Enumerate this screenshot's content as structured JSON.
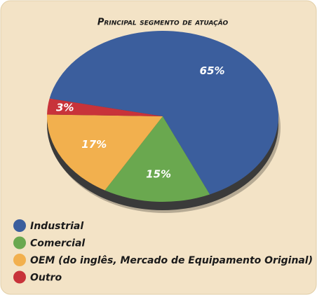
{
  "chart_data": {
    "type": "pie",
    "title": "Principal segmento de atuação",
    "categories": [
      "Industrial",
      "Comercial",
      "OEM (do inglês, Mercado de Equipamento Original)",
      "Outro"
    ],
    "values": [
      65,
      15,
      17,
      3
    ],
    "value_labels": [
      "65%",
      "15%",
      "17%",
      "3%"
    ],
    "colors": [
      "#3b5e9d",
      "#6aa84f",
      "#f2b04e",
      "#c8333a"
    ]
  }
}
